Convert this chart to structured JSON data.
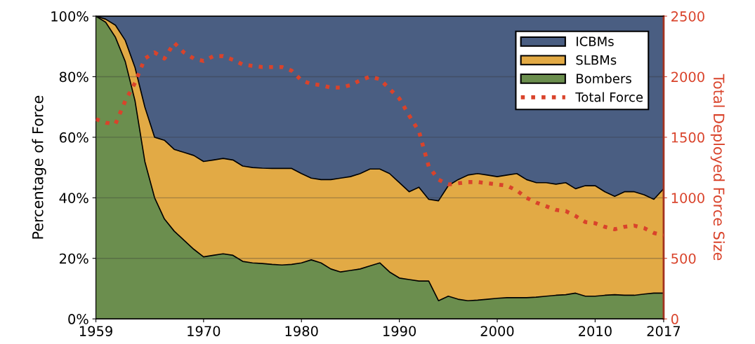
{
  "chart_data": {
    "type": "area",
    "stacked": true,
    "ylabel": "Percentage of Force",
    "y2label": "Total Deployed Force Size",
    "x": [
      1959,
      1960,
      1961,
      1962,
      1963,
      1964,
      1965,
      1966,
      1967,
      1968,
      1969,
      1970,
      1971,
      1972,
      1973,
      1974,
      1975,
      1976,
      1977,
      1978,
      1979,
      1980,
      1981,
      1982,
      1983,
      1984,
      1985,
      1986,
      1987,
      1988,
      1989,
      1990,
      1991,
      1992,
      1993,
      1994,
      1995,
      1996,
      1997,
      1998,
      1999,
      2000,
      2001,
      2002,
      2003,
      2004,
      2005,
      2006,
      2007,
      2008,
      2009,
      2010,
      2011,
      2012,
      2013,
      2014,
      2015,
      2016,
      2017
    ],
    "series": [
      {
        "name": "Bombers",
        "color": "#6b8e4e",
        "values": [
          100,
          98,
          93,
          85,
          72,
          52,
          40,
          33,
          29,
          26,
          23,
          20.5,
          21,
          21.5,
          21,
          19,
          18.5,
          18.3,
          18,
          17.8,
          18,
          18.5,
          19.5,
          18.5,
          16.5,
          15.5,
          16,
          16.5,
          17.5,
          18.5,
          15.5,
          13.5,
          13,
          12.5,
          12.5,
          6,
          7.5,
          6.5,
          6,
          6.2,
          6.5,
          6.8,
          7,
          7,
          7,
          7.2,
          7.5,
          7.8,
          8,
          8.5,
          7.5,
          7.5,
          7.8,
          8,
          7.8,
          7.8,
          8.2,
          8.5,
          8.5
        ]
      },
      {
        "name": "SLBMs",
        "color": "#e2aa45",
        "values": [
          0,
          1,
          4,
          7,
          11,
          18,
          20,
          26,
          27,
          29,
          31,
          31.5,
          31.5,
          31.5,
          31.5,
          31.5,
          31.5,
          31.5,
          31.7,
          31.9,
          31.7,
          29.5,
          27,
          27.5,
          29.5,
          31,
          31,
          31.5,
          32,
          31,
          32.5,
          31.5,
          29,
          31,
          27,
          33,
          36.5,
          39.5,
          41.5,
          41.8,
          41,
          40.2,
          40.5,
          41,
          39,
          37.8,
          37.5,
          36.7,
          37,
          34.5,
          36.5,
          36.5,
          34.2,
          32.5,
          34.2,
          34.2,
          32.8,
          31,
          34.5
        ]
      },
      {
        "name": "ICBMs",
        "color": "#4a5e82",
        "values": [
          0,
          1,
          3,
          8,
          17,
          30,
          40,
          41,
          44,
          45,
          46,
          48,
          47.5,
          47,
          47.5,
          49.5,
          50,
          50.2,
          50.3,
          50.3,
          50.3,
          52,
          53.5,
          54,
          54,
          53.5,
          53,
          52,
          50.5,
          50.5,
          52,
          55,
          58,
          56.5,
          60.5,
          61,
          56,
          54,
          52.5,
          52,
          52.5,
          53,
          52.5,
          52,
          54,
          55,
          55,
          55.5,
          55,
          57,
          56,
          56,
          58,
          59.5,
          58,
          58,
          59,
          60.5,
          57
        ]
      },
      {
        "name": "Total Force",
        "type": "line",
        "axis": "y2",
        "line_style": "dotted",
        "color": "#d9432b",
        "values": [
          1650,
          1620,
          1610,
          1800,
          1950,
          2150,
          2200,
          2150,
          2280,
          2200,
          2150,
          2130,
          2170,
          2170,
          2140,
          2100,
          2090,
          2080,
          2080,
          2080,
          2050,
          1970,
          1940,
          1930,
          1910,
          1910,
          1930,
          1970,
          2000,
          1980,
          1900,
          1820,
          1680,
          1550,
          1260,
          1150,
          1110,
          1120,
          1130,
          1130,
          1120,
          1110,
          1100,
          1060,
          1000,
          960,
          930,
          900,
          890,
          850,
          800,
          790,
          760,
          740,
          760,
          770,
          750,
          710,
          690
        ]
      }
    ],
    "xlim": [
      1959,
      2017
    ],
    "xticks": [
      1959,
      1970,
      1980,
      1990,
      2000,
      2010,
      2017
    ],
    "ylim": [
      0,
      100
    ],
    "yticks": [
      {
        "value": 0,
        "label": "0%"
      },
      {
        "value": 20,
        "label": "20%"
      },
      {
        "value": 40,
        "label": "40%"
      },
      {
        "value": 60,
        "label": "60%"
      },
      {
        "value": 80,
        "label": "80%"
      },
      {
        "value": 100,
        "label": "100%"
      }
    ],
    "y2lim": [
      0,
      2500
    ],
    "y2ticks": [
      0,
      500,
      1000,
      1500,
      2000,
      2500
    ],
    "grid": "y",
    "legend": "top right"
  }
}
